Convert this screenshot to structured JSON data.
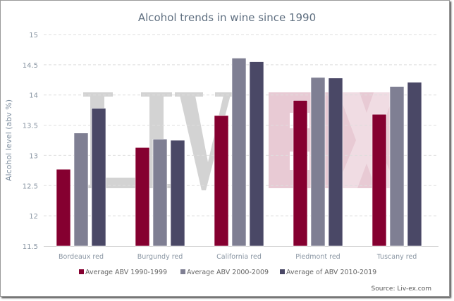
{
  "chart_data": {
    "type": "bar",
    "title": "Alcohol trends in wine since 1990",
    "xlabel": "",
    "ylabel": "Alcohol level (abv %)",
    "ylim": [
      11.5,
      15
    ],
    "yticks": [
      "11.5",
      "12",
      "12.5",
      "13",
      "13.5",
      "14",
      "14.5",
      "15"
    ],
    "grid": true,
    "legend_position": "bottom",
    "categories": [
      "Bordeaux red",
      "Burgundy red",
      "California red",
      "Piedmont red",
      "Tuscany red"
    ],
    "series": [
      {
        "name": "Average ABV 1990-1999",
        "color": "#850030",
        "values": [
          12.77,
          13.13,
          13.66,
          13.91,
          13.68
        ]
      },
      {
        "name": "Average ABV 2000-2009",
        "color": "#7f7f93",
        "values": [
          13.37,
          13.27,
          14.61,
          14.29,
          14.14
        ]
      },
      {
        "name": "Average of ABV 2010-2019",
        "color": "#4a4866",
        "values": [
          13.78,
          13.25,
          14.55,
          14.28,
          14.21
        ]
      }
    ],
    "source": "Source: Liv-ex.com",
    "watermark": "LIV-EX"
  }
}
